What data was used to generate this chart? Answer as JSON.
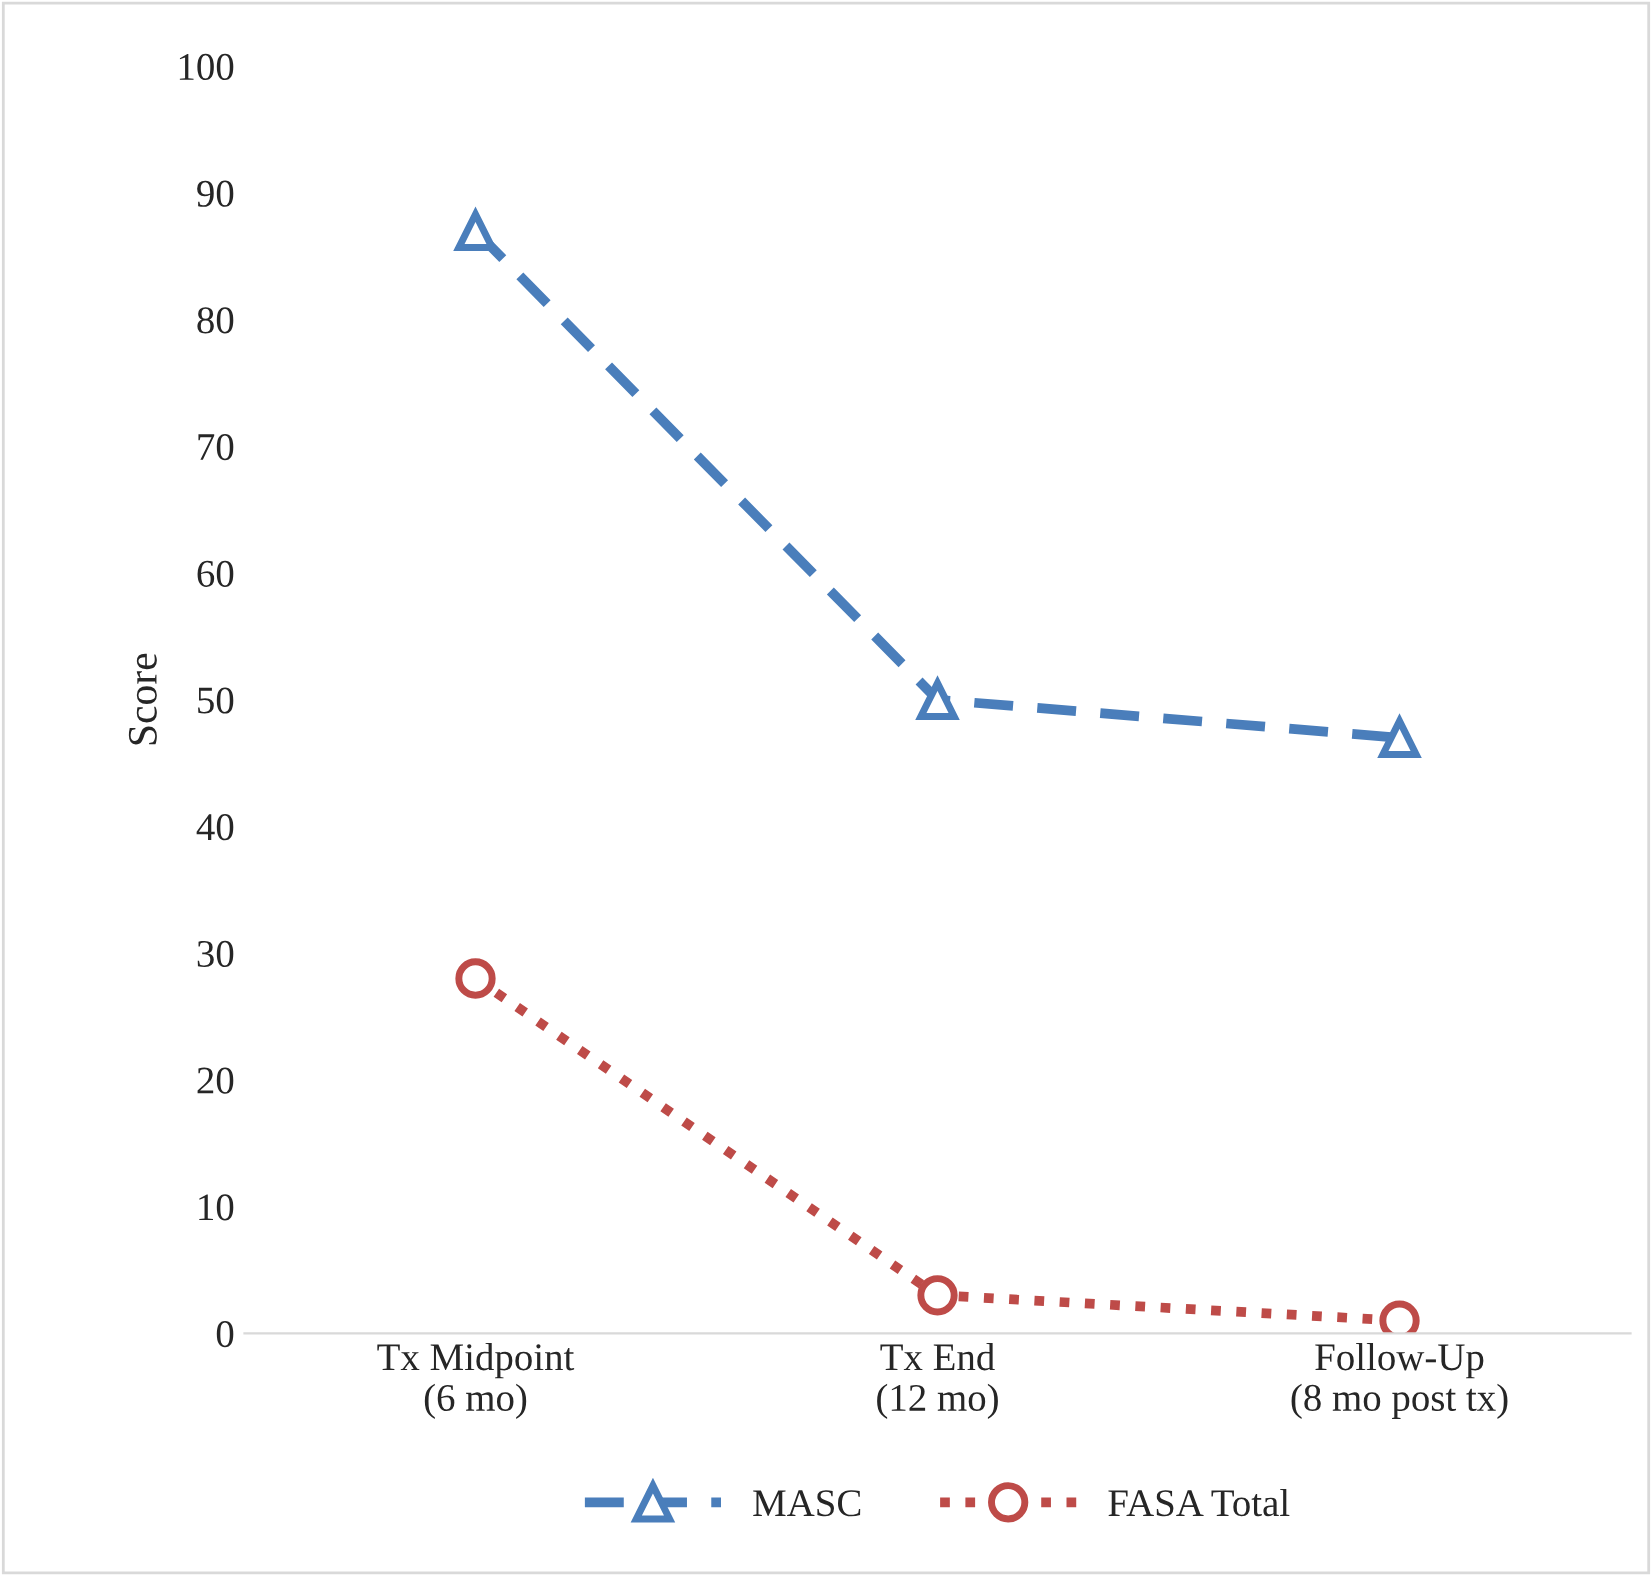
{
  "chart_data": {
    "type": "line",
    "ylabel": "Score",
    "categories": [
      "Tx Midpoint\n(6 mo)",
      "Tx End\n(12 mo)",
      "Follow-Up\n(8 mo post tx)"
    ],
    "series": [
      {
        "name": "MASC",
        "color": "#4a7ebb",
        "values": [
          87,
          50,
          47
        ],
        "marker": "triangle",
        "line_style": "dashed"
      },
      {
        "name": "FASA Total",
        "color": "#be4b48",
        "values": [
          28,
          3,
          1
        ],
        "marker": "circle",
        "line_style": "dotted"
      }
    ],
    "ylim": [
      0,
      100
    ],
    "yticks": [
      0,
      10,
      20,
      30,
      40,
      50,
      60,
      70,
      80,
      90,
      100
    ],
    "grid": false,
    "legend": "bottom"
  }
}
